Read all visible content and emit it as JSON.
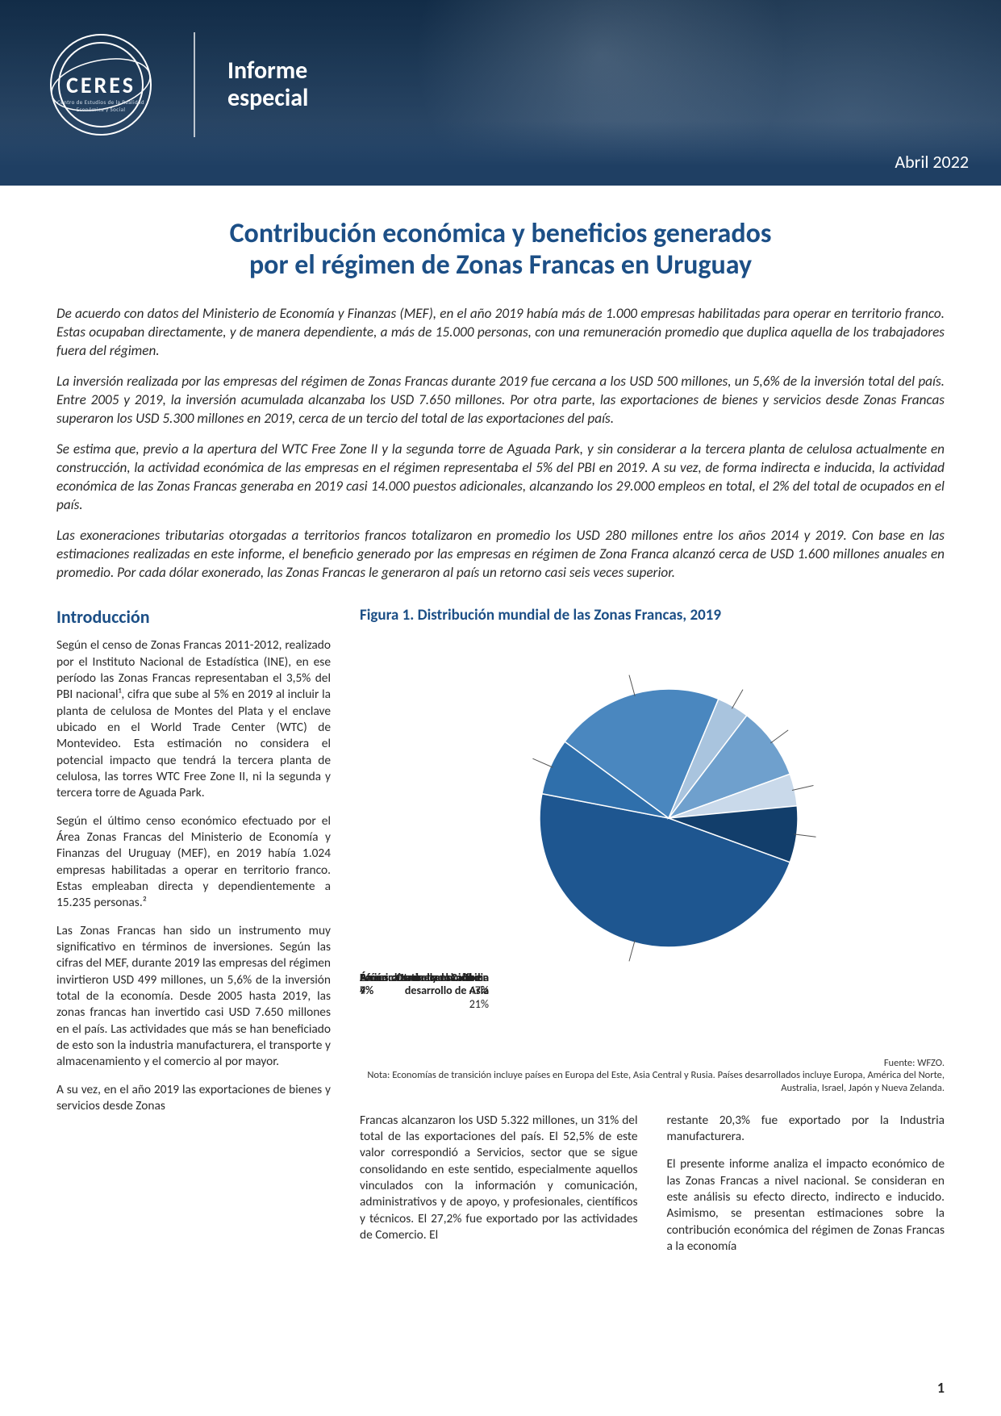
{
  "colors": {
    "brand_blue": "#1c4f86",
    "banner_top": "#1a3a5c",
    "banner_bottom": "#1f3f63",
    "text": "#2a2a2a",
    "white": "#ffffff"
  },
  "header": {
    "logo_text": "CERES",
    "logo_sub": "Centro de Estudios de la Realidad Económica y Social",
    "banner_title_l1": "Informe",
    "banner_title_l2": "especial",
    "date": "Abril 2022"
  },
  "title_l1": "Contribución económica y beneficios generados",
  "title_l2": "por el régimen de Zonas Francas en Uruguay",
  "summary": {
    "p1": "De acuerdo con datos del Ministerio de Economía y Finanzas (MEF), en el año 2019 había más de 1.000 empresas habilitadas para operar en territorio franco. Estas ocupaban directamente, y de manera dependiente, a más de 15.000 personas, con una remuneración promedio que duplica aquella de los trabajadores fuera del régimen.",
    "p2": "La inversión realizada por las empresas del régimen de Zonas Francas durante 2019 fue cercana a los USD 500 millones, un 5,6% de la inversión total del país. Entre 2005 y 2019, la inversión acumulada alcanzaba los USD 7.650 millones. Por otra parte, las exportaciones de bienes y servicios desde Zonas Francas superaron los USD 5.300 millones en 2019, cerca de un tercio del total de las exportaciones del país.",
    "p3": "Se estima que, previo a la apertura del WTC Free Zone II y la segunda torre de Aguada Park, y sin considerar a la tercera planta de celulosa actualmente en construcción, la actividad económica de las empresas en el régimen representaba el 5% del PBI en 2019. A su vez, de forma indirecta e inducida, la actividad económica de las Zonas Francas generaba en 2019 casi 14.000 puestos adicionales, alcanzando los 29.000 empleos en total, el 2% del total de ocupados en el país.",
    "p4": "Las exoneraciones tributarias otorgadas a territorios francos totalizaron en promedio los USD 280 millones entre los años 2014 y 2019. Con base en las estimaciones realizadas en este informe, el beneficio generado por las empresas en régimen de Zona Franca alcanzó cerca de USD 1.600 millones anuales en promedio. Por cada dólar exonerado, las Zonas Francas le generaron al país un retorno casi seis veces superior."
  },
  "intro": {
    "heading": "Introducción",
    "p1": "Según el censo de Zonas Francas 2011-2012, realizado por el Instituto Nacional de Estadística (INE), en ese período las Zonas Francas representaban el 3,5% del PBI nacional¹, cifra que sube al 5% en 2019 al incluir la planta de celulosa de Montes del Plata y el enclave ubicado en el World Trade Center (WTC) de Montevideo. Esta estimación no considera el potencial impacto que tendrá la tercera planta de celulosa, las torres WTC Free Zone II, ni la segunda y tercera torre de Aguada Park.",
    "p2": "Según el último censo económico efectuado por el Área Zonas Francas del Ministerio de Economía y Finanzas del Uruguay (MEF), en 2019 había 1.024 empresas habilitadas a operar en territorio franco. Estas empleaban directa y dependientemente a 15.235 personas.²",
    "p3": "Las Zonas Francas han sido un instrumento muy significativo en términos de inversiones. Según las cifras del MEF, durante 2019 las empresas del régimen invirtieron USD 499 millones, un 5,6% de la inversión total de la economía. Desde 2005 hasta 2019, las zonas francas han invertido casi USD 7.650 millones en el país. Las actividades que más se han beneficiado de esto son la industria manufacturera, el transporte y almacenamiento y el comercio al por mayor.",
    "p4": "A su vez, en el año 2019 las exportaciones de bienes y servicios desde Zonas"
  },
  "figure1": {
    "title": "Figura 1. Distribución mundial de las Zonas Francas, 2019",
    "type": "pie",
    "slices": [
      {
        "label": "China",
        "pct": 47,
        "color": "#1e5690"
      },
      {
        "label": "India",
        "pct": 7,
        "color": "#2f6fab"
      },
      {
        "label": "Otras economías en desarrollo de Asia",
        "pct": 21,
        "color": "#4a87bf"
      },
      {
        "label": "África",
        "pct": 4,
        "color": "#a9c4de"
      },
      {
        "label": "América Latina y el Caribe",
        "pct": 9,
        "color": "#6fa0cd"
      },
      {
        "label": "Economías de transición",
        "pct": 4,
        "color": "#c9d9ea"
      },
      {
        "label": "Países desarrollados",
        "pct": 7,
        "color": "#123e6b"
      }
    ],
    "radius": 160,
    "background": "#ffffff",
    "label_fontsize": 14,
    "start_angle_deg": 20,
    "source": "Fuente: WFZO.",
    "note": "Nota: Economías de transición incluye países en Europa del Este, Asia Central y Rusia. Países desarrollados incluye Europa, América del Norte, Australia, Israel, Japón y Nueva Zelanda."
  },
  "lower": {
    "c1": "Francas alcanzaron los USD 5.322 millones, un 31% del total de las exportaciones del país.  El 52,5% de este valor correspondió a Servicios, sector que se sigue consolidando en este sentido, especialmente aquellos vinculados con la información y comunicación, administrativos y de apoyo, y profesionales, científicos y técnicos. El 27,2% fue exportado por las actividades de Comercio. El",
    "c2a": "restante 20,3% fue exportado por la Industria manufacturera.",
    "c2b": "El presente informe analiza el impacto económico de las Zonas Francas a nivel nacional. Se consideran en este análisis su efecto directo, indirecto e inducido. Asimismo, se presentan estimaciones sobre la contribución económica del régimen de Zonas Francas a la economía"
  },
  "page_number": "1"
}
